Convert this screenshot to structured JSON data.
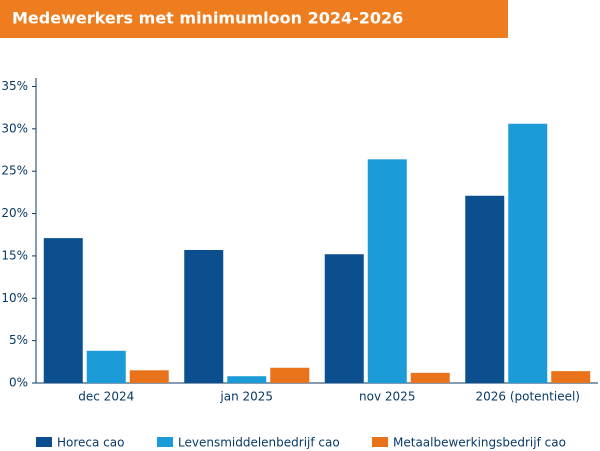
{
  "chart_data": {
    "type": "bar",
    "title": "Medewerkers met minimumloon 2024-2026",
    "categories": [
      "dec 2024",
      "jan 2025",
      "nov 2025",
      "2026 (potentieel)"
    ],
    "series": [
      {
        "name": "Horeca cao",
        "color": "#0b4f8e",
        "values": [
          17.1,
          15.7,
          15.2,
          22.1
        ]
      },
      {
        "name": "Levensmiddelenbedrijf cao",
        "color": "#1b9bd7",
        "values": [
          3.8,
          0.8,
          26.4,
          30.6
        ]
      },
      {
        "name": "Metaalbewerkingsbedrijf cao",
        "color": "#e8731a",
        "values": [
          1.5,
          1.8,
          1.2,
          1.4
        ]
      }
    ],
    "ylim": [
      0,
      36
    ],
    "yticks": [
      {
        "value": 0,
        "label": "0%"
      },
      {
        "value": 5,
        "label": "5%"
      },
      {
        "value": 10,
        "label": "10%"
      },
      {
        "value": 15,
        "label": "15%"
      },
      {
        "value": 20,
        "label": "20%"
      },
      {
        "value": 25,
        "label": "25%"
      },
      {
        "value": 30,
        "label": "30%"
      },
      {
        "value": 35,
        "label": "35%"
      }
    ],
    "grid": false
  }
}
